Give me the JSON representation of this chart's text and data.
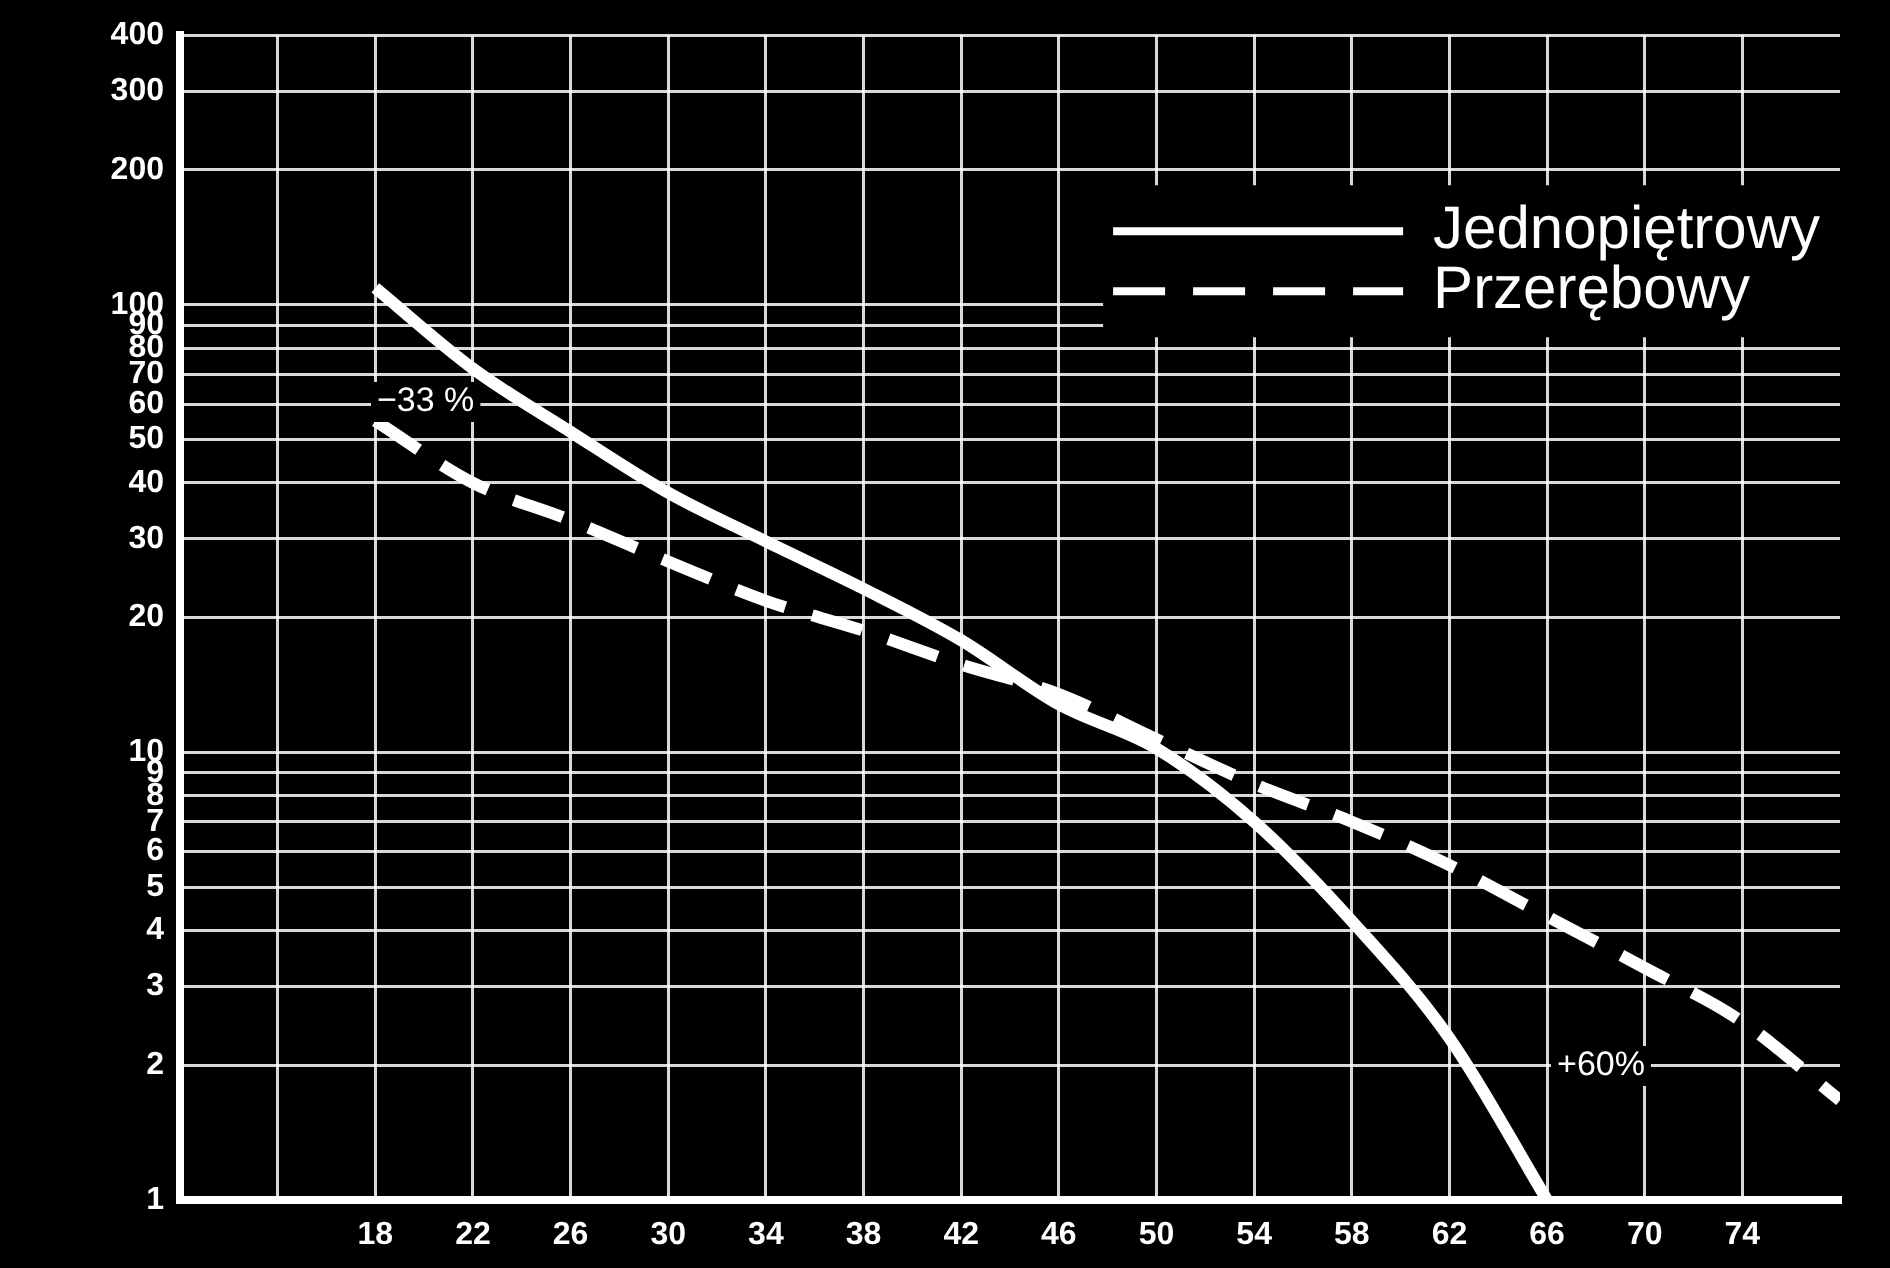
{
  "chart_data": {
    "type": "line",
    "log": "y",
    "grid": true,
    "legend": "top right",
    "marker": "none",
    "xlim": [
      10,
      78
    ],
    "xticks": [
      {
        "value": 14,
        "label": null
      },
      18,
      22,
      26,
      30,
      34,
      38,
      42,
      46,
      50,
      54,
      58,
      62,
      66,
      70,
      74
    ],
    "ylim": [
      1,
      400
    ],
    "yticks": [
      1,
      2,
      3,
      4,
      5,
      6,
      7,
      8,
      9,
      10,
      20,
      30,
      40,
      50,
      60,
      70,
      80,
      90,
      100,
      200,
      300,
      400
    ],
    "series": [
      {
        "name": "Jednopiętrowy",
        "color": "#ffffff",
        "line_style": "solid",
        "x": [
          18,
          22,
          26,
          30,
          34,
          38,
          42,
          46,
          50,
          54,
          58,
          62,
          66
        ],
        "values": [
          109,
          72,
          52,
          38,
          29.6,
          23.2,
          17.8,
          12.8,
          10.2,
          7,
          4.2,
          2.3,
          1
        ]
      },
      {
        "name": "Przerębowy",
        "color": "#ffffff",
        "line_style": "dashed",
        "x": [
          18,
          22,
          26,
          30,
          34,
          38,
          42,
          46,
          50,
          54,
          58,
          62,
          66,
          70,
          74,
          78
        ],
        "values": [
          55,
          40,
          33,
          26.7,
          21.8,
          18.7,
          15.7,
          13.5,
          10.7,
          8.5,
          7,
          5.6,
          4.3,
          3.3,
          2.5,
          1.67
        ]
      }
    ],
    "annotations": [
      "−33 %",
      "+60%"
    ]
  }
}
